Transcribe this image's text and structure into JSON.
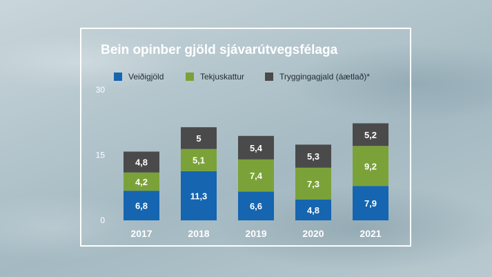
{
  "chart_data": {
    "type": "bar",
    "stacked": true,
    "title": "Bein opinber gjöld sjávarútvegsfélaga",
    "categories": [
      "2017",
      "2018",
      "2019",
      "2020",
      "2021"
    ],
    "series": [
      {
        "name": "Veiðigjöld",
        "color": "#1565b0",
        "values": [
          6.8,
          11.3,
          6.6,
          4.8,
          7.9
        ],
        "labels": [
          "6,8",
          "11,3",
          "6,6",
          "4,8",
          "7,9"
        ]
      },
      {
        "name": "Tekjuskattur",
        "color": "#7ba238",
        "values": [
          4.2,
          5.1,
          7.4,
          7.3,
          9.2
        ],
        "labels": [
          "4,2",
          "5,1",
          "7,4",
          "7,3",
          "9,2"
        ]
      },
      {
        "name": "Tryggingagjald (áætlað)*",
        "color": "#4a4a4a",
        "values": [
          4.8,
          5,
          5.4,
          5.3,
          5.2
        ],
        "labels": [
          "4,8",
          "5",
          "5,4",
          "5,3",
          "5,2"
        ]
      }
    ],
    "yticks": [
      "0",
      "15",
      "30"
    ],
    "ylim": [
      0,
      30
    ],
    "xlabel": "",
    "ylabel": "",
    "grid": false,
    "legend": "top"
  }
}
